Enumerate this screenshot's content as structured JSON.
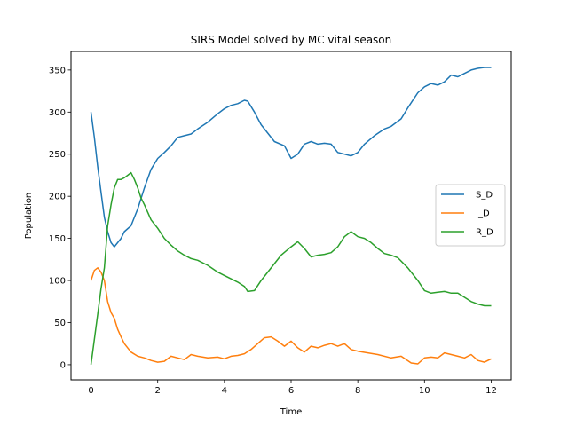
{
  "chart_data": {
    "type": "line",
    "title": "SIRS Model solved by MC vital season",
    "xlabel": "Time",
    "ylabel": "Population",
    "xlim": [
      -0.6,
      12.6
    ],
    "ylim": [
      -18,
      372
    ],
    "xticks": [
      0,
      2,
      4,
      6,
      8,
      10,
      12
    ],
    "yticks": [
      0,
      50,
      100,
      150,
      200,
      250,
      300,
      350
    ],
    "grid": false,
    "legend_position": "center-right",
    "series": [
      {
        "name": "S_D",
        "color": "#1f77b4",
        "x": [
          0,
          0.1,
          0.2,
          0.3,
          0.4,
          0.5,
          0.6,
          0.7,
          0.8,
          0.9,
          1.0,
          1.2,
          1.4,
          1.6,
          1.8,
          2.0,
          2.2,
          2.4,
          2.6,
          2.8,
          3.0,
          3.2,
          3.5,
          3.8,
          4.0,
          4.2,
          4.4,
          4.6,
          4.7,
          4.9,
          5.1,
          5.3,
          5.5,
          5.8,
          6.0,
          6.2,
          6.4,
          6.6,
          6.8,
          7.0,
          7.2,
          7.4,
          7.6,
          7.8,
          8.0,
          8.2,
          8.5,
          8.8,
          9.0,
          9.3,
          9.5,
          9.8,
          10.0,
          10.2,
          10.4,
          10.6,
          10.8,
          11.0,
          11.2,
          11.4,
          11.6,
          11.8,
          12.0
        ],
        "y": [
          300,
          270,
          235,
          205,
          175,
          158,
          145,
          140,
          145,
          150,
          158,
          165,
          185,
          210,
          232,
          245,
          252,
          260,
          270,
          272,
          274,
          280,
          288,
          298,
          304,
          308,
          310,
          314,
          313,
          300,
          285,
          275,
          265,
          260,
          245,
          250,
          262,
          265,
          262,
          263,
          262,
          252,
          250,
          248,
          252,
          262,
          272,
          280,
          283,
          292,
          305,
          323,
          330,
          334,
          332,
          336,
          344,
          342,
          346,
          350,
          352,
          353,
          353
        ]
      },
      {
        "name": "I_D",
        "color": "#ff7f0e",
        "x": [
          0,
          0.1,
          0.2,
          0.3,
          0.4,
          0.5,
          0.6,
          0.7,
          0.8,
          0.9,
          1.0,
          1.2,
          1.4,
          1.6,
          1.8,
          2.0,
          2.2,
          2.4,
          2.6,
          2.8,
          3.0,
          3.2,
          3.5,
          3.8,
          4.0,
          4.2,
          4.4,
          4.6,
          4.8,
          5.0,
          5.2,
          5.4,
          5.6,
          5.8,
          6.0,
          6.2,
          6.4,
          6.6,
          6.8,
          7.0,
          7.2,
          7.4,
          7.6,
          7.8,
          8.0,
          8.3,
          8.6,
          9.0,
          9.3,
          9.6,
          9.8,
          10.0,
          10.2,
          10.4,
          10.6,
          10.8,
          11.0,
          11.2,
          11.4,
          11.6,
          11.8,
          12.0
        ],
        "y": [
          100,
          112,
          115,
          110,
          100,
          75,
          62,
          55,
          42,
          33,
          25,
          15,
          10,
          8,
          5,
          3,
          4,
          10,
          8,
          6,
          12,
          10,
          8,
          9,
          7,
          10,
          11,
          13,
          18,
          25,
          32,
          33,
          28,
          22,
          28,
          20,
          15,
          22,
          20,
          23,
          25,
          22,
          25,
          18,
          16,
          14,
          12,
          8,
          10,
          2,
          1,
          8,
          9,
          8,
          14,
          12,
          10,
          8,
          12,
          5,
          3,
          7
        ]
      },
      {
        "name": "R_D",
        "color": "#2ca02c",
        "x": [
          0,
          0.1,
          0.2,
          0.3,
          0.4,
          0.5,
          0.6,
          0.7,
          0.8,
          0.9,
          1.0,
          1.1,
          1.2,
          1.3,
          1.4,
          1.5,
          1.6,
          1.8,
          2.0,
          2.2,
          2.4,
          2.6,
          2.8,
          3.0,
          3.2,
          3.5,
          3.8,
          4.0,
          4.2,
          4.4,
          4.6,
          4.7,
          4.9,
          5.1,
          5.3,
          5.5,
          5.7,
          6.0,
          6.2,
          6.4,
          6.6,
          6.8,
          7.0,
          7.2,
          7.4,
          7.6,
          7.8,
          8.0,
          8.2,
          8.4,
          8.6,
          8.8,
          9.0,
          9.2,
          9.5,
          9.8,
          10.0,
          10.2,
          10.4,
          10.6,
          10.8,
          11.0,
          11.2,
          11.4,
          11.6,
          11.8,
          12.0
        ],
        "y": [
          0,
          30,
          60,
          90,
          115,
          165,
          190,
          210,
          220,
          220,
          222,
          225,
          228,
          220,
          210,
          198,
          190,
          172,
          162,
          150,
          142,
          135,
          130,
          126,
          124,
          118,
          110,
          106,
          102,
          98,
          93,
          87,
          88,
          100,
          110,
          120,
          130,
          140,
          146,
          138,
          128,
          130,
          131,
          133,
          140,
          152,
          158,
          152,
          150,
          145,
          138,
          132,
          130,
          127,
          115,
          100,
          88,
          85,
          86,
          87,
          85,
          85,
          80,
          75,
          72,
          70,
          70
        ]
      }
    ]
  }
}
